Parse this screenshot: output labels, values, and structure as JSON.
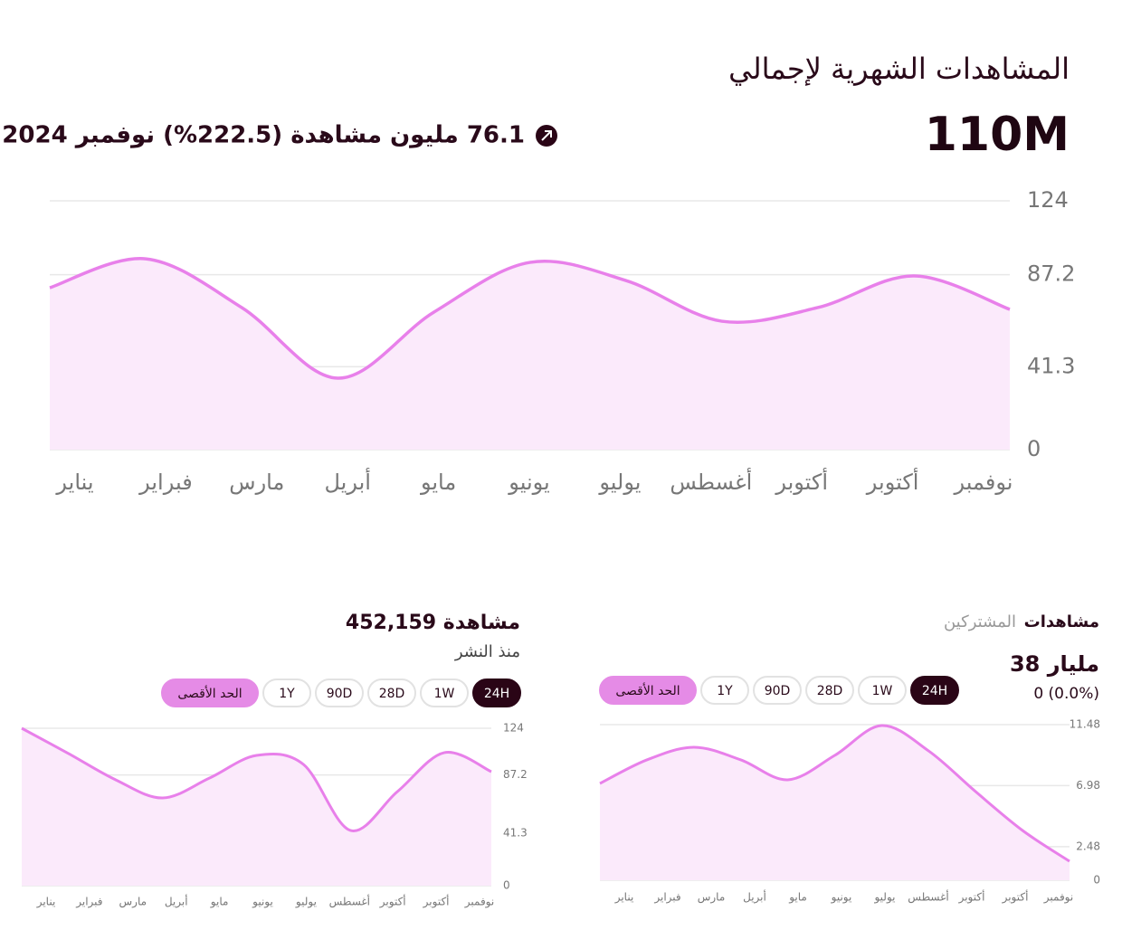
{
  "header": {
    "title": "المشاهدات الشهرية لإجمالي",
    "total": "110M",
    "change": "76.1 مليون مشاهدة (222.5%) نوفمبر 2024"
  },
  "chart_data": [
    {
      "type": "area",
      "color": "#e880ea",
      "fill": "#fbeafb",
      "categories": [
        "يناير",
        "فبراير",
        "مارس",
        "أبريل",
        "مايو",
        "يونيو",
        "يوليو",
        "أغسطس",
        "أكتوبر",
        "أكتوبر",
        "نوفمبر"
      ],
      "values": [
        80.7,
        95.1,
        70.8,
        35.6,
        68.5,
        93.3,
        84.3,
        64.0,
        70.8,
        86.6,
        69.9
      ],
      "ylim": [
        0,
        124
      ],
      "yticks": [
        0,
        41.3,
        87.2,
        124
      ],
      "grid": true
    },
    {
      "type": "area",
      "color": "#e880ea",
      "fill": "#fbeafb",
      "categories": [
        "يناير",
        "فبراير",
        "مارس",
        "أبريل",
        "مايو",
        "يونيو",
        "يوليو",
        "أغسطس",
        "أكتوبر",
        "أكتوبر",
        "نوفمبر"
      ],
      "values": [
        124,
        104,
        83.4,
        69.1,
        84.8,
        102.6,
        95.5,
        43.5,
        74.1,
        104.8,
        89.8
      ],
      "ylim": [
        0,
        124
      ],
      "yticks": [
        0,
        41.3,
        87.2,
        124
      ],
      "grid": true
    },
    {
      "type": "area",
      "color": "#e880ea",
      "fill": "#fbeafb",
      "categories": [
        "يناير",
        "فبراير",
        "مارس",
        "أبريل",
        "مايو",
        "يونيو",
        "يوليو",
        "أغسطس",
        "أكتوبر",
        "أكتوبر",
        "نوفمبر"
      ],
      "values": [
        7.14,
        8.88,
        9.81,
        8.88,
        7.41,
        9.21,
        11.41,
        9.54,
        6.54,
        3.67,
        1.4
      ],
      "ylim": [
        0,
        11.48
      ],
      "yticks": [
        0,
        2.48,
        6.98,
        11.48
      ],
      "grid": true
    }
  ],
  "widgets": {
    "left": {
      "title": "452,159 مشاهدة",
      "subtitle": "منذ النشر",
      "buttons": [
        "24H",
        "1W",
        "28D",
        "90D",
        "1Y",
        "الحد الأقصى"
      ]
    },
    "right": {
      "tabs": [
        "مشاهدات",
        "المشتركين"
      ],
      "title": "38 مليار",
      "subtitle": "0 (0.0%)",
      "buttons": [
        "24H",
        "1W",
        "28D",
        "90D",
        "1Y",
        "الحد الأقصى"
      ]
    }
  }
}
